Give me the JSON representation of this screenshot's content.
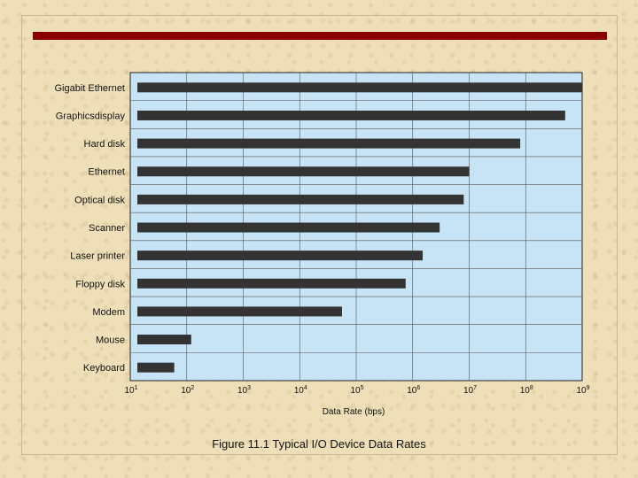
{
  "slide": {
    "caption": "Figure 11.1  Typical I/O Device Data Rates",
    "rule_color": "#8b0000"
  },
  "chart_data": {
    "type": "bar",
    "orientation": "horizontal",
    "x_scale": "log10",
    "xlim": [
      10,
      1000000000
    ],
    "xlabel": "Data Rate (bps)",
    "x_tick_exponents": [
      1,
      2,
      3,
      4,
      5,
      6,
      7,
      8,
      9
    ],
    "x_tick_base": "10",
    "categories": [
      "Gigabit Ethernet",
      "Graphicsdisplay",
      "Hard disk",
      "Ethernet",
      "Optical disk",
      "Scanner",
      "Laser printer",
      "Floppy disk",
      "Modem",
      "Mouse",
      "Keyboard"
    ],
    "values": [
      1000000000,
      500000000,
      80000000,
      10000000,
      8000000,
      3000000,
      1500000,
      750000,
      56000,
      120,
      60
    ],
    "bar_color": "#333333",
    "plot_background": "#c6e4f5",
    "grid": true
  }
}
